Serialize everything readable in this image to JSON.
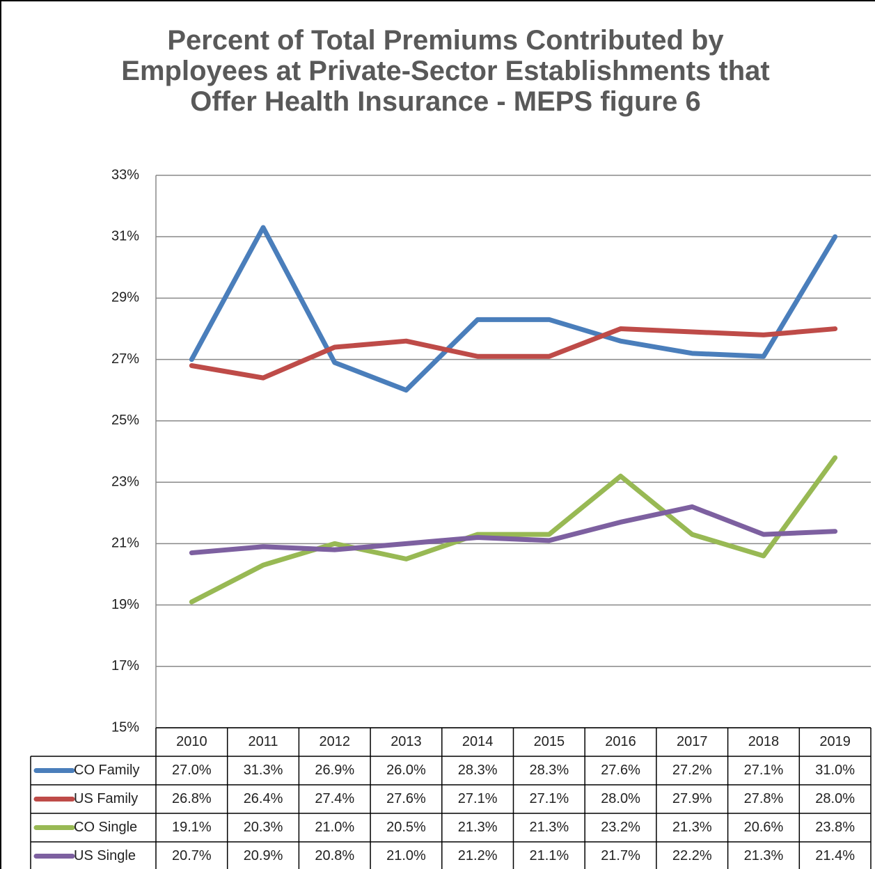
{
  "chart_data": {
    "type": "line",
    "title": "Percent of Total Premiums Contributed by Employees at Private-Sector Establishments that Offer Health Insurance - MEPS figure 6",
    "categories": [
      "2010",
      "2011",
      "2012",
      "2013",
      "2014",
      "2015",
      "2016",
      "2017",
      "2018",
      "2019"
    ],
    "series": [
      {
        "name": "CO Family",
        "color": "#4a7ebb",
        "values": [
          27.0,
          31.3,
          26.9,
          26.0,
          28.3,
          28.3,
          27.6,
          27.2,
          27.1,
          31.0
        ],
        "value_labels": [
          "27.0%",
          "31.3%",
          "26.9%",
          "26.0%",
          "28.3%",
          "28.3%",
          "27.6%",
          "27.2%",
          "27.1%",
          "31.0%"
        ]
      },
      {
        "name": "US Family",
        "color": "#be4b48",
        "values": [
          26.8,
          26.4,
          27.4,
          27.6,
          27.1,
          27.1,
          28.0,
          27.9,
          27.8,
          28.0
        ],
        "value_labels": [
          "26.8%",
          "26.4%",
          "27.4%",
          "27.6%",
          "27.1%",
          "27.1%",
          "28.0%",
          "27.9%",
          "27.8%",
          "28.0%"
        ]
      },
      {
        "name": "CO Single",
        "color": "#98b954",
        "values": [
          19.1,
          20.3,
          21.0,
          20.5,
          21.3,
          21.3,
          23.2,
          21.3,
          20.6,
          23.8
        ],
        "value_labels": [
          "19.1%",
          "20.3%",
          "21.0%",
          "20.5%",
          "21.3%",
          "21.3%",
          "23.2%",
          "21.3%",
          "20.6%",
          "23.8%"
        ]
      },
      {
        "name": "US Single",
        "color": "#7d60a0",
        "values": [
          20.7,
          20.9,
          20.8,
          21.0,
          21.2,
          21.1,
          21.7,
          22.2,
          21.3,
          21.4
        ],
        "value_labels": [
          "20.7%",
          "20.9%",
          "20.8%",
          "21.0%",
          "21.2%",
          "21.1%",
          "21.7%",
          "22.2%",
          "21.3%",
          "21.4%"
        ]
      }
    ],
    "ylim": [
      15,
      33
    ],
    "yticks": [
      {
        "value": 15,
        "label": "15%"
      },
      {
        "value": 17,
        "label": "17%"
      },
      {
        "value": 19,
        "label": "19%"
      },
      {
        "value": 21,
        "label": "21%"
      },
      {
        "value": 23,
        "label": "23%"
      },
      {
        "value": 25,
        "label": "25%"
      },
      {
        "value": 27,
        "label": "27%"
      },
      {
        "value": 29,
        "label": "29%"
      },
      {
        "value": 31,
        "label": "31%"
      },
      {
        "value": 33,
        "label": "33%"
      }
    ],
    "grid": true
  }
}
